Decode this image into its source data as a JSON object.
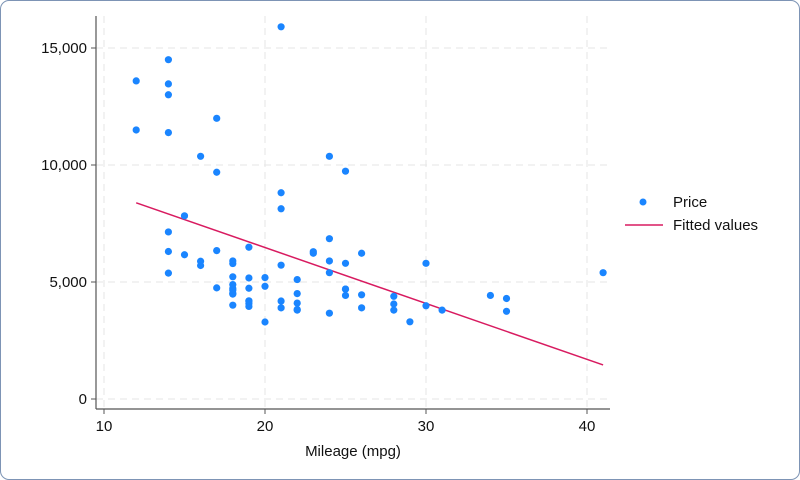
{
  "chart_data": {
    "type": "scatter",
    "title": "",
    "xlabel": "Mileage (mpg)",
    "ylabel": "",
    "xlim": [
      9.5,
      42
    ],
    "ylim": [
      -400,
      16400
    ],
    "x_ticks": [
      10,
      20,
      30,
      40
    ],
    "x_tick_labels": [
      "10",
      "20",
      "30",
      "40"
    ],
    "y_ticks": [
      0,
      5000,
      10000,
      15000
    ],
    "y_tick_labels": [
      "0",
      "5,000",
      "10,000",
      "15,000"
    ],
    "grid": true,
    "legend_position": "right",
    "series": [
      {
        "name": "Price",
        "type": "scatter",
        "color": "#1a85ff",
        "points": [
          [
            22,
            4099
          ],
          [
            17,
            4749
          ],
          [
            22,
            3799
          ],
          [
            20,
            4816
          ],
          [
            15,
            7827
          ],
          [
            18,
            5788
          ],
          [
            26,
            4453
          ],
          [
            20,
            5189
          ],
          [
            16,
            10372
          ],
          [
            19,
            4082
          ],
          [
            14,
            11385
          ],
          [
            14,
            14500
          ],
          [
            21,
            15906
          ],
          [
            29,
            3299
          ],
          [
            16,
            5705
          ],
          [
            22,
            4504
          ],
          [
            22,
            5104
          ],
          [
            24,
            3667
          ],
          [
            19,
            3955
          ],
          [
            30,
            3984
          ],
          [
            18,
            4010
          ],
          [
            16,
            5886
          ],
          [
            17,
            6342
          ],
          [
            28,
            4389
          ],
          [
            21,
            4187
          ],
          [
            12,
            11497
          ],
          [
            12,
            13594
          ],
          [
            14,
            13466
          ],
          [
            22,
            3829
          ],
          [
            14,
            5379
          ],
          [
            15,
            6165
          ],
          [
            18,
            4516
          ],
          [
            14,
            6303
          ],
          [
            20,
            3291
          ],
          [
            21,
            8814
          ],
          [
            19,
            5172
          ],
          [
            19,
            4733
          ],
          [
            18,
            4890
          ],
          [
            19,
            4181
          ],
          [
            19,
            4195
          ],
          [
            24,
            10371
          ],
          [
            18,
            4647
          ],
          [
            25,
            4425
          ],
          [
            18,
            4482
          ],
          [
            19,
            6486
          ],
          [
            28,
            4060
          ],
          [
            30,
            5798
          ],
          [
            18,
            5222
          ],
          [
            18,
            4723
          ],
          [
            35,
            4296
          ],
          [
            24,
            6850
          ],
          [
            21,
            5719
          ],
          [
            14,
            7140
          ],
          [
            24,
            5397
          ],
          [
            25,
            4697
          ],
          [
            23,
            6295
          ],
          [
            35,
            3748
          ],
          [
            24,
            5899
          ],
          [
            21,
            3895
          ],
          [
            31,
            3798
          ],
          [
            18,
            5899
          ],
          [
            26,
            3895
          ],
          [
            28,
            3798
          ],
          [
            25,
            5799
          ],
          [
            26,
            6229
          ],
          [
            25,
            9735
          ],
          [
            17,
            9690
          ],
          [
            23,
            6229
          ],
          [
            41,
            5397
          ],
          [
            25,
            4697
          ],
          [
            34,
            4425
          ],
          [
            21,
            8129
          ],
          [
            17,
            11995
          ],
          [
            14,
            13001
          ]
        ]
      },
      {
        "name": "Fitted values",
        "type": "line",
        "color": "#d81b60",
        "points": [
          [
            12,
            8384
          ],
          [
            41,
            1456
          ]
        ]
      }
    ]
  }
}
